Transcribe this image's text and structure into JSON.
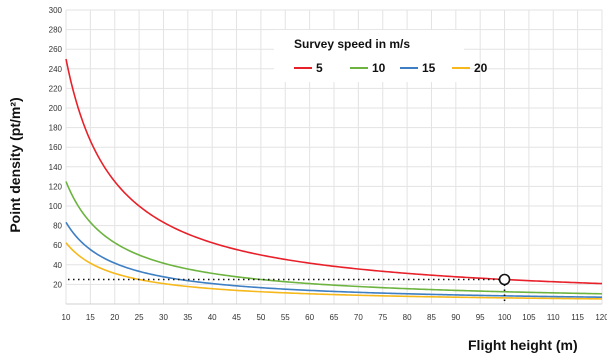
{
  "chart_data": {
    "type": "line",
    "xlabel": "Flight height (m)",
    "ylabel": "Point density (pt/m²)",
    "xlim": [
      10,
      120
    ],
    "ylim": [
      0,
      300
    ],
    "x_ticks": [
      10,
      15,
      20,
      25,
      30,
      35,
      40,
      45,
      50,
      55,
      60,
      65,
      70,
      75,
      80,
      85,
      90,
      95,
      100,
      105,
      110,
      115,
      120
    ],
    "y_ticks": [
      20,
      40,
      60,
      80,
      100,
      120,
      140,
      160,
      180,
      200,
      220,
      240,
      260,
      280,
      300
    ],
    "grid": true,
    "legend": {
      "title": "Survey speed in m/s",
      "placement": "top-right"
    },
    "series_model": "density = 12500 / (speed × height)",
    "series": [
      {
        "name": "5",
        "speed": 5,
        "color": "#e8202a"
      },
      {
        "name": "10",
        "speed": 10,
        "color": "#6cb33f"
      },
      {
        "name": "15",
        "speed": 15,
        "color": "#3e7fc4"
      },
      {
        "name": "20",
        "speed": 20,
        "color": "#f6b81a"
      }
    ],
    "annotation": {
      "marker_x": 100,
      "marker_y": 25,
      "style": "dotted guide lines with open circle marker"
    }
  }
}
